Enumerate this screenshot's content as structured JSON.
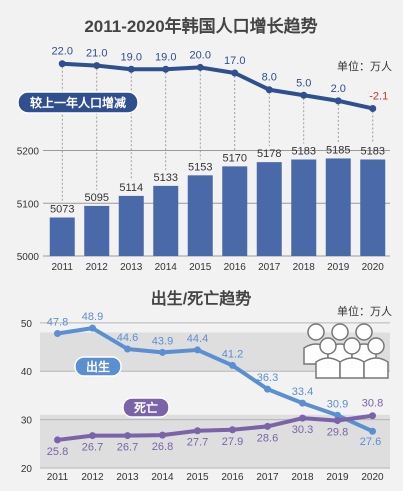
{
  "colors": {
    "background": "#f2f2f2",
    "panel_bg": "#ffffff",
    "bar": "#2f4f8f",
    "bar_light": "#4a69a8",
    "line_change": "#2f4f8f",
    "birth": "#5b8fd1",
    "death": "#7a63a8",
    "negative": "#c0392b",
    "band": "#dedede",
    "text": "#333333",
    "label_blue": "#2f4f8f"
  },
  "top": {
    "title": "2011-2020年韩国人口增长趋势",
    "unit": "单位：万人",
    "change_label": "较上一年人口增减"
  },
  "bottom": {
    "title": "出生/死亡趋势",
    "unit": "单位：万人",
    "birth_label": "出生",
    "death_label": "死亡",
    "people_icon": "people-group-icon"
  },
  "chart_data": [
    {
      "type": "bar",
      "title": "2011-2020年韩国人口增长趋势",
      "unit": "单位：万人",
      "categories": [
        "2011",
        "2012",
        "2013",
        "2014",
        "2015",
        "2016",
        "2017",
        "2018",
        "2019",
        "2020"
      ],
      "series": [
        {
          "values": [
            5073,
            5095,
            5114,
            5133,
            5153,
            5170,
            5178,
            5183,
            5185,
            5183
          ]
        }
      ],
      "y_ticks": [
        5000,
        5100,
        5200
      ],
      "ylim": [
        5000,
        5220
      ],
      "grid": true
    },
    {
      "type": "line",
      "categories": [
        "2011",
        "2012",
        "2013",
        "2014",
        "2015",
        "2016",
        "2017",
        "2018",
        "2019",
        "2020"
      ],
      "series": [
        {
          "name": "较上一年人口增减",
          "values": [
            22.0,
            21.0,
            19.0,
            19.0,
            20.0,
            17.0,
            8.0,
            5.0,
            2.0,
            -2.1
          ]
        }
      ]
    },
    {
      "type": "line",
      "title": "出生/死亡趋势",
      "unit": "单位：万人",
      "categories": [
        "2011",
        "2012",
        "2013",
        "2014",
        "2015",
        "2016",
        "2017",
        "2018",
        "2019",
        "2020"
      ],
      "series": [
        {
          "name": "出生",
          "values": [
            47.8,
            48.9,
            44.6,
            43.9,
            44.4,
            41.2,
            36.3,
            33.4,
            30.9,
            27.6
          ]
        },
        {
          "name": "死亡",
          "values": [
            25.8,
            26.7,
            26.7,
            26.8,
            27.7,
            27.9,
            28.6,
            30.3,
            29.8,
            30.8
          ]
        }
      ],
      "y_ticks": [
        20,
        30,
        40,
        50
      ],
      "ylim": [
        20,
        51
      ],
      "grid": true
    }
  ]
}
